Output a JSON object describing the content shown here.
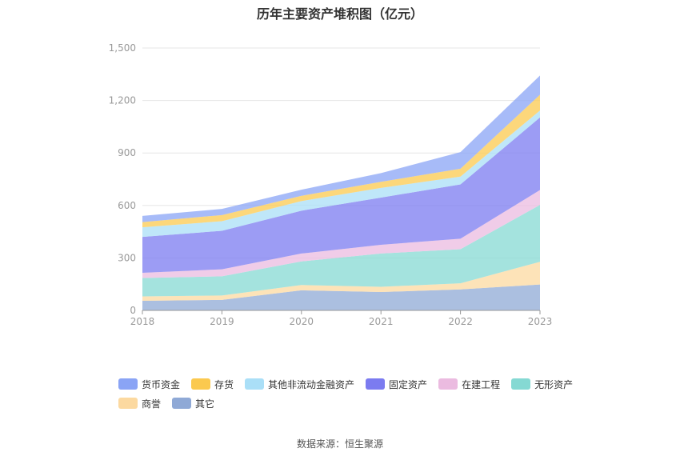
{
  "chart_data": {
    "type": "area",
    "stacked": true,
    "title": "历年主要资产堆积图（亿元）",
    "x": [
      "2018",
      "2019",
      "2020",
      "2021",
      "2022",
      "2023"
    ],
    "ylim": [
      0,
      1500
    ],
    "yticks": [
      "0",
      "300",
      "600",
      "900",
      "1,200",
      "1,500"
    ],
    "grid": true,
    "legend_position": "bottom",
    "series": [
      {
        "name": "其它",
        "color": "#8fa9d6",
        "values": [
          55,
          60,
          115,
          105,
          120,
          148
        ]
      },
      {
        "name": "商誉",
        "color": "#fcd9a0",
        "values": [
          25,
          25,
          30,
          30,
          35,
          130
        ]
      },
      {
        "name": "无形资产",
        "color": "#85d9d3",
        "values": [
          105,
          110,
          135,
          190,
          195,
          325
        ]
      },
      {
        "name": "在建工程",
        "color": "#ebbbe0",
        "values": [
          30,
          40,
          45,
          50,
          60,
          85
        ]
      },
      {
        "name": "固定资产",
        "color": "#7b7bf0",
        "values": [
          205,
          220,
          245,
          270,
          310,
          415
        ]
      },
      {
        "name": "其他非流动金融资产",
        "color": "#aadff7",
        "values": [
          55,
          55,
          55,
          55,
          45,
          40
        ]
      },
      {
        "name": "存货",
        "color": "#fbc94f",
        "values": [
          30,
          35,
          30,
          35,
          45,
          90
        ]
      },
      {
        "name": "货币资金",
        "color": "#8aa4f5",
        "values": [
          35,
          35,
          35,
          50,
          95,
          110
        ]
      }
    ],
    "legend_order": [
      "货币资金",
      "存货",
      "其他非流动金融资产",
      "固定资产",
      "在建工程",
      "无形资产",
      "商誉",
      "其它"
    ]
  },
  "source": "数据来源：恒生聚源"
}
